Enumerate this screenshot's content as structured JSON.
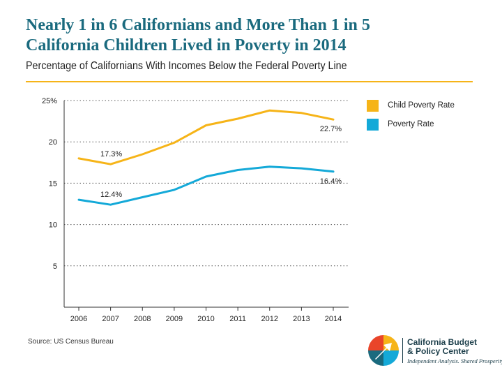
{
  "header": {
    "title_line1": "Nearly 1 in 6 Californians and More Than 1 in 5",
    "title_line2": "California Children Lived in Poverty in 2014",
    "subtitle": "Percentage of Californians With Incomes Below the Federal Poverty Line"
  },
  "colors": {
    "title": "#1a6a7e",
    "accent_rule": "#f6b418",
    "child_series": "#f6b418",
    "poverty_series": "#14a9d8",
    "grid": "#555555"
  },
  "chart_data": {
    "type": "line",
    "categories": [
      "2006",
      "2007",
      "2008",
      "2009",
      "2010",
      "2011",
      "2012",
      "2013",
      "2014"
    ],
    "series": [
      {
        "name": "Child Poverty Rate",
        "color": "#f6b418",
        "values": [
          18.0,
          17.3,
          18.5,
          19.9,
          22.0,
          22.8,
          23.8,
          23.5,
          22.7
        ]
      },
      {
        "name": "Poverty Rate",
        "color": "#14a9d8",
        "values": [
          13.0,
          12.4,
          13.3,
          14.2,
          15.8,
          16.6,
          17.0,
          16.8,
          16.4
        ]
      }
    ],
    "ylim": [
      0,
      25
    ],
    "yticks": [
      5,
      10,
      15,
      20,
      25
    ],
    "ytick_labels": [
      "5",
      "10",
      "15",
      "20",
      "25%"
    ],
    "grid": "dotted horizontal",
    "legend": "top-right",
    "annotations": [
      {
        "series": 0,
        "index": 1,
        "text": "17.3%"
      },
      {
        "series": 0,
        "index": 8,
        "text": "22.7%"
      },
      {
        "series": 1,
        "index": 1,
        "text": "12.4%"
      },
      {
        "series": 1,
        "index": 8,
        "text": "16.4%"
      }
    ]
  },
  "legend": {
    "items": [
      {
        "label": "Child Poverty Rate",
        "color": "#f6b418"
      },
      {
        "label": "Poverty Rate",
        "color": "#14a9d8"
      }
    ]
  },
  "footer": {
    "source": "Source: US Census Bureau",
    "logo_line1": "California Budget",
    "logo_line2": "& Policy Center",
    "logo_tagline": "Independent Analysis. Shared Prosperity."
  }
}
